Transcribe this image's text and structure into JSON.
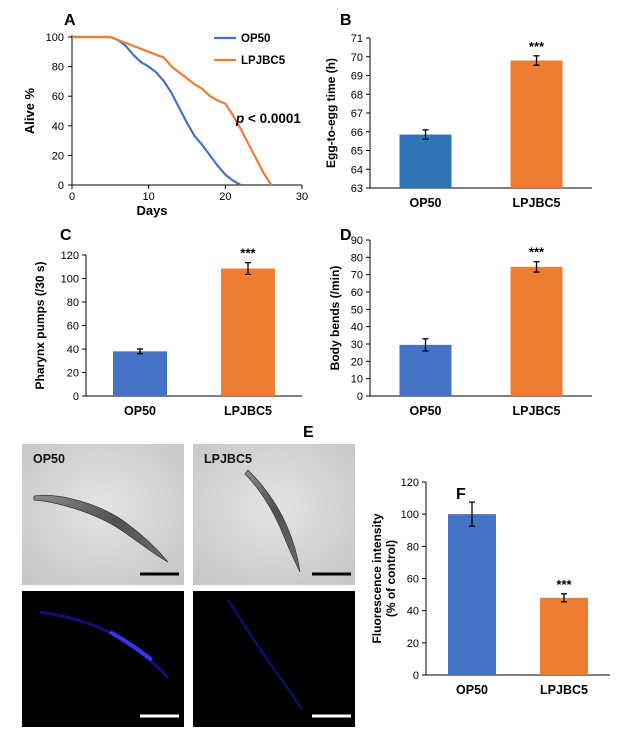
{
  "chart_data": [
    {
      "panel": "A",
      "type": "line",
      "xlabel": "Days",
      "ylabel": "Alive %",
      "xlim": [
        0,
        30
      ],
      "ylim": [
        0,
        100
      ],
      "xticks": [
        "0",
        "10",
        "20",
        "30"
      ],
      "yticks": [
        "0",
        "20",
        "40",
        "60",
        "80",
        "100"
      ],
      "annotation": {
        "italic": "p",
        "text": " < 0.0001"
      },
      "legend_position": "top-right",
      "series": [
        {
          "name": "OP50",
          "color": "#4472C4",
          "points": [
            [
              0,
              100
            ],
            [
              5,
              100
            ],
            [
              6,
              98
            ],
            [
              7,
              94
            ],
            [
              8,
              88
            ],
            [
              9,
              83
            ],
            [
              10,
              80
            ],
            [
              11,
              76
            ],
            [
              12,
              70
            ],
            [
              13,
              62
            ],
            [
              14,
              52
            ],
            [
              15,
              42
            ],
            [
              16,
              33
            ],
            [
              17,
              27
            ],
            [
              18,
              20
            ],
            [
              19,
              13
            ],
            [
              20,
              7
            ],
            [
              21,
              3
            ],
            [
              22,
              0
            ]
          ]
        },
        {
          "name": "LPJBC5",
          "color": "#ED7D31",
          "points": [
            [
              0,
              100
            ],
            [
              5,
              100
            ],
            [
              6,
              98
            ],
            [
              7,
              96
            ],
            [
              8,
              94
            ],
            [
              9,
              92
            ],
            [
              10,
              90
            ],
            [
              11,
              88
            ],
            [
              12,
              86
            ],
            [
              13,
              80
            ],
            [
              14,
              76
            ],
            [
              15,
              72
            ],
            [
              16,
              68
            ],
            [
              17,
              65
            ],
            [
              18,
              60
            ],
            [
              19,
              57
            ],
            [
              20,
              55
            ],
            [
              21,
              47
            ],
            [
              22,
              38
            ],
            [
              23,
              28
            ],
            [
              24,
              18
            ],
            [
              25,
              8
            ],
            [
              26,
              0
            ]
          ]
        }
      ]
    },
    {
      "panel": "B",
      "type": "bar",
      "ylabel": "Egg-to-egg time (h)",
      "ylim": [
        63,
        71
      ],
      "yticks": [
        "63",
        "64",
        "65",
        "66",
        "67",
        "68",
        "69",
        "70",
        "71"
      ],
      "categories": [
        "OP50",
        "LPJBC5"
      ],
      "values": [
        65.85,
        69.8
      ],
      "errors": [
        0.25,
        0.25
      ],
      "colors": [
        "#2E75B6",
        "#ED7D31"
      ],
      "significance": [
        "",
        "***"
      ]
    },
    {
      "panel": "C",
      "type": "bar",
      "ylabel": "Pharynx pumps (/30 s)",
      "ylim": [
        0,
        120
      ],
      "yticks": [
        "0",
        "20",
        "40",
        "60",
        "80",
        "100",
        "120"
      ],
      "categories": [
        "OP50",
        "LPJBC5"
      ],
      "values": [
        38,
        108.5
      ],
      "errors": [
        2,
        5
      ],
      "colors": [
        "#4472C4",
        "#ED7D31"
      ],
      "significance": [
        "",
        "***"
      ]
    },
    {
      "panel": "D",
      "type": "bar",
      "ylabel": "Body bends (/min)",
      "ylim": [
        0,
        90
      ],
      "yticks": [
        "0",
        "10",
        "20",
        "30",
        "40",
        "50",
        "60",
        "70",
        "80",
        "90"
      ],
      "categories": [
        "OP50",
        "LPJBC5"
      ],
      "values": [
        29.5,
        74.5
      ],
      "errors": [
        3.5,
        3
      ],
      "colors": [
        "#4472C4",
        "#ED7D31"
      ],
      "significance": [
        "",
        "***"
      ]
    },
    {
      "panel": "F",
      "type": "bar",
      "ylabel": "Fluorescence intensity",
      "ylabel2": "(% of control)",
      "ylim": [
        0,
        120
      ],
      "yticks": [
        "0",
        "20",
        "40",
        "60",
        "80",
        "100",
        "120"
      ],
      "categories": [
        "OP50",
        "LPJBC5"
      ],
      "values": [
        100,
        48
      ],
      "errors": [
        7.5,
        2.5
      ],
      "colors": [
        "#4472C4",
        "#ED7D31"
      ],
      "significance": [
        "",
        "***"
      ]
    }
  ],
  "panel_e": {
    "letter": "E",
    "labels": [
      "OP50",
      "LPJBC5"
    ]
  }
}
